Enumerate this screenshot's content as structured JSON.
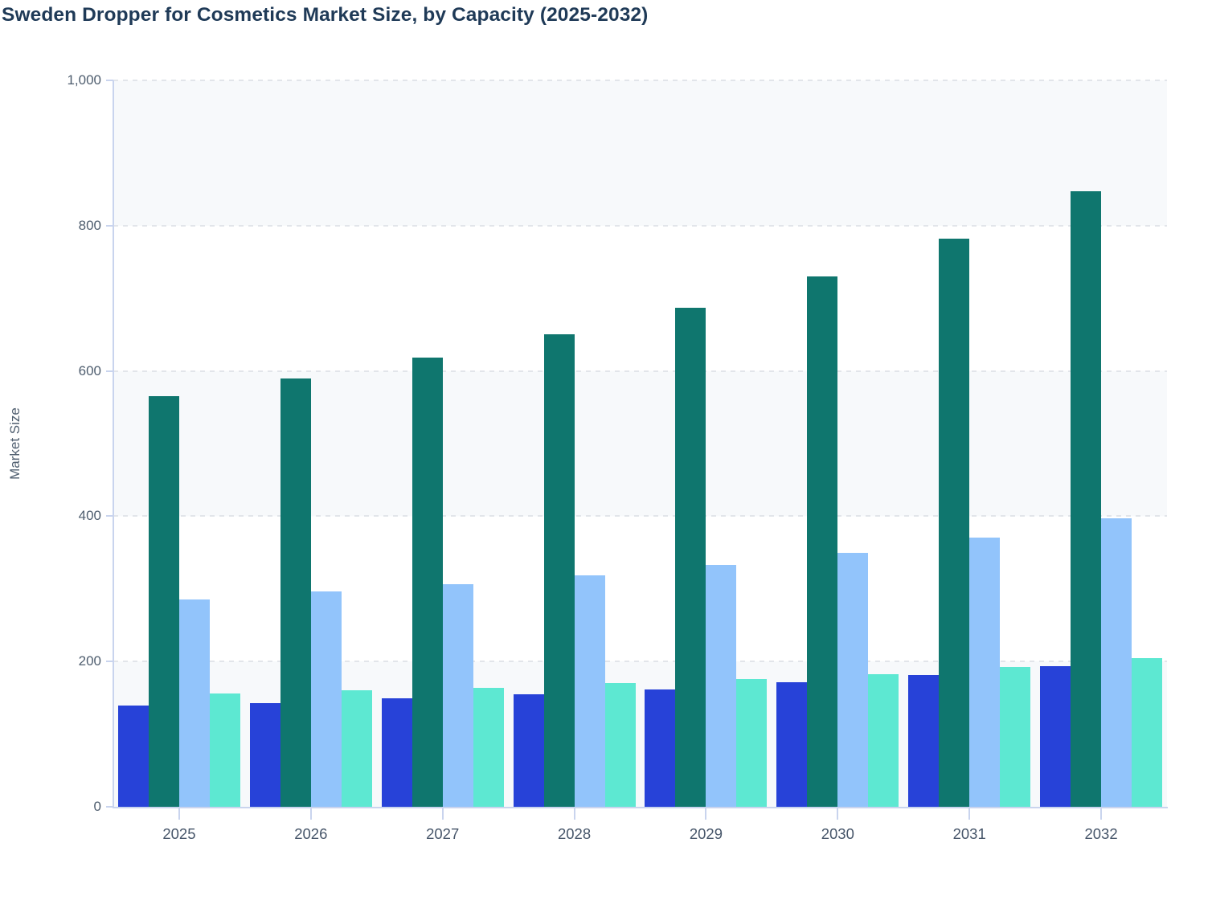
{
  "title": "Sweden Dropper for Cosmetics Market Size, by Capacity (2025-2032)",
  "chart_data": {
    "type": "bar",
    "title": "Sweden Dropper for Cosmetics Market Size, by Capacity (2025-2032)",
    "xlabel": "",
    "ylabel": "Market Size",
    "ylim": [
      0,
      1000
    ],
    "yticks": [
      0,
      200,
      400,
      600,
      800,
      1000
    ],
    "ytick_labels": [
      "0",
      "200",
      "400",
      "600",
      "800",
      "1,000"
    ],
    "categories": [
      "2025",
      "2026",
      "2027",
      "2028",
      "2029",
      "2030",
      "2031",
      "2032"
    ],
    "series": [
      {
        "name": "series-1",
        "color": "#2742d8",
        "values": [
          139,
          143,
          149,
          155,
          162,
          171,
          181,
          194
        ]
      },
      {
        "name": "series-2",
        "color": "#0f766e",
        "values": [
          565,
          590,
          618,
          650,
          687,
          730,
          782,
          847
        ]
      },
      {
        "name": "series-3",
        "color": "#92c4fb",
        "values": [
          286,
          296,
          307,
          319,
          333,
          350,
          371,
          397
        ]
      },
      {
        "name": "series-4",
        "color": "#5de8d2",
        "values": [
          156,
          160,
          164,
          170,
          176,
          183,
          193,
          205
        ]
      }
    ],
    "legend": "none",
    "grid": "horizontal-dashed",
    "plot_band_colors": [
      "#f7f9fb",
      "#ffffff"
    ]
  },
  "colors": {
    "title": "#1f3a57",
    "axis_line": "#c9d4ee",
    "gridline": "#e2e5ea",
    "tick_label": "#4e5d6e",
    "background": "#ffffff"
  }
}
